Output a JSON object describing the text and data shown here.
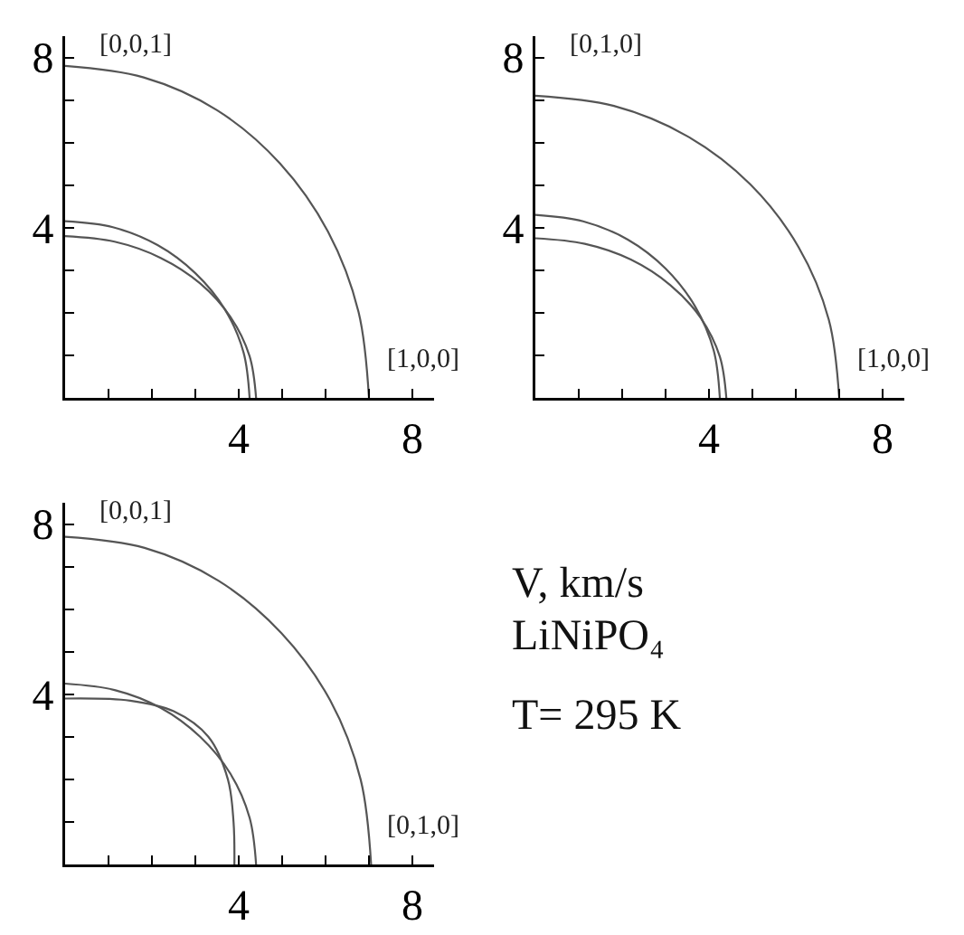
{
  "chart_data": [
    {
      "type": "line",
      "xlim": [
        0,
        8.5
      ],
      "ylim": [
        0,
        8.5
      ],
      "xticks": [
        {
          "value": 1,
          "label": null
        },
        {
          "value": 2,
          "label": null
        },
        {
          "value": 3,
          "label": null
        },
        {
          "value": 4,
          "label": "4"
        },
        {
          "value": 5,
          "label": null
        },
        {
          "value": 6,
          "label": null
        },
        {
          "value": 7,
          "label": null
        },
        {
          "value": 8,
          "label": "8"
        }
      ],
      "yticks": [
        {
          "value": 1,
          "label": null
        },
        {
          "value": 2,
          "label": null
        },
        {
          "value": 3,
          "label": null
        },
        {
          "value": 4,
          "label": "4"
        },
        {
          "value": 5,
          "label": null
        },
        {
          "value": 6,
          "label": null
        },
        {
          "value": 7,
          "label": null
        },
        {
          "value": 8,
          "label": "8"
        }
      ],
      "grid": false,
      "marker": "none",
      "line_style": "solid",
      "annotations": [
        "[0,0,1]",
        "[1,0,0]"
      ],
      "series": [
        {
          "color": "#555555",
          "x": [
            7.0,
            6.76,
            6.06,
            4.95,
            3.5,
            1.81,
            0
          ],
          "values": [
            0,
            2.02,
            3.9,
            5.51,
            6.76,
            7.53,
            7.8
          ]
        },
        {
          "color": "#555555",
          "x": [
            4.4,
            4.25,
            3.81,
            3.11,
            2.2,
            1.14,
            0
          ],
          "values": [
            0,
            0.98,
            1.9,
            2.69,
            3.29,
            3.67,
            3.8
          ]
        },
        {
          "color": "#555555",
          "x": [
            4.25,
            4.11,
            3.68,
            3.0,
            2.13,
            1.1,
            0
          ],
          "values": [
            0,
            1.07,
            2.08,
            2.93,
            3.59,
            4.01,
            4.15
          ]
        }
      ]
    },
    {
      "type": "line",
      "xlim": [
        0,
        8.5
      ],
      "ylim": [
        0,
        8.5
      ],
      "xticks": [
        {
          "value": 1,
          "label": null
        },
        {
          "value": 2,
          "label": null
        },
        {
          "value": 3,
          "label": null
        },
        {
          "value": 4,
          "label": "4"
        },
        {
          "value": 5,
          "label": null
        },
        {
          "value": 6,
          "label": null
        },
        {
          "value": 7,
          "label": null
        },
        {
          "value": 8,
          "label": "8"
        }
      ],
      "yticks": [
        {
          "value": 1,
          "label": null
        },
        {
          "value": 2,
          "label": null
        },
        {
          "value": 3,
          "label": null
        },
        {
          "value": 4,
          "label": "4"
        },
        {
          "value": 5,
          "label": null
        },
        {
          "value": 6,
          "label": null
        },
        {
          "value": 7,
          "label": null
        },
        {
          "value": 8,
          "label": "8"
        }
      ],
      "grid": false,
      "marker": "none",
      "line_style": "solid",
      "annotations": [
        "[0,1,0]",
        "[1,0,0]"
      ],
      "series": [
        {
          "color": "#555555",
          "x": [
            7.0,
            6.76,
            6.06,
            4.95,
            3.5,
            1.81,
            0
          ],
          "values": [
            0,
            1.84,
            3.55,
            5.02,
            6.15,
            6.86,
            7.1
          ]
        },
        {
          "color": "#555555",
          "x": [
            4.4,
            4.25,
            3.81,
            3.11,
            2.2,
            1.14,
            0
          ],
          "values": [
            0,
            0.97,
            1.88,
            2.65,
            3.25,
            3.62,
            3.75
          ]
        },
        {
          "color": "#555555",
          "x": [
            4.25,
            4.11,
            3.68,
            3.0,
            2.13,
            1.1,
            0
          ],
          "values": [
            0,
            1.11,
            2.15,
            3.04,
            3.72,
            4.15,
            4.3
          ]
        }
      ]
    },
    {
      "type": "line",
      "xlim": [
        0,
        8.5
      ],
      "ylim": [
        0,
        8.5
      ],
      "xticks": [
        {
          "value": 1,
          "label": null
        },
        {
          "value": 2,
          "label": null
        },
        {
          "value": 3,
          "label": null
        },
        {
          "value": 4,
          "label": "4"
        },
        {
          "value": 5,
          "label": null
        },
        {
          "value": 6,
          "label": null
        },
        {
          "value": 7,
          "label": null
        },
        {
          "value": 8,
          "label": "8"
        }
      ],
      "yticks": [
        {
          "value": 1,
          "label": null
        },
        {
          "value": 2,
          "label": null
        },
        {
          "value": 3,
          "label": null
        },
        {
          "value": 4,
          "label": "4"
        },
        {
          "value": 5,
          "label": null
        },
        {
          "value": 6,
          "label": null
        },
        {
          "value": 7,
          "label": null
        },
        {
          "value": 8,
          "label": "8"
        }
      ],
      "grid": false,
      "marker": "none",
      "line_style": "solid",
      "annotations": [
        "[0,0,1]",
        "[0,1,0]",
        "V, km/s",
        "LiNiPO₄",
        "T= 295 K"
      ],
      "series": [
        {
          "color": "#555555",
          "x": [
            7.05,
            6.81,
            6.11,
            4.98,
            3.53,
            1.83,
            0
          ],
          "values": [
            0,
            1.99,
            3.85,
            5.44,
            6.67,
            7.44,
            7.7
          ]
        },
        {
          "color": "#555555",
          "x": [
            3.9,
            3.88,
            3.75,
            3.3,
            2.5,
            1.5,
            0
          ],
          "values": [
            0,
            1.0,
            2.0,
            3.0,
            3.6,
            3.85,
            3.9
          ]
        },
        {
          "color": "#555555",
          "x": [
            4.4,
            4.25,
            3.81,
            3.11,
            2.2,
            1.14,
            0
          ],
          "values": [
            0,
            1.1,
            2.13,
            3.0,
            3.68,
            4.1,
            4.25
          ]
        }
      ]
    }
  ]
}
